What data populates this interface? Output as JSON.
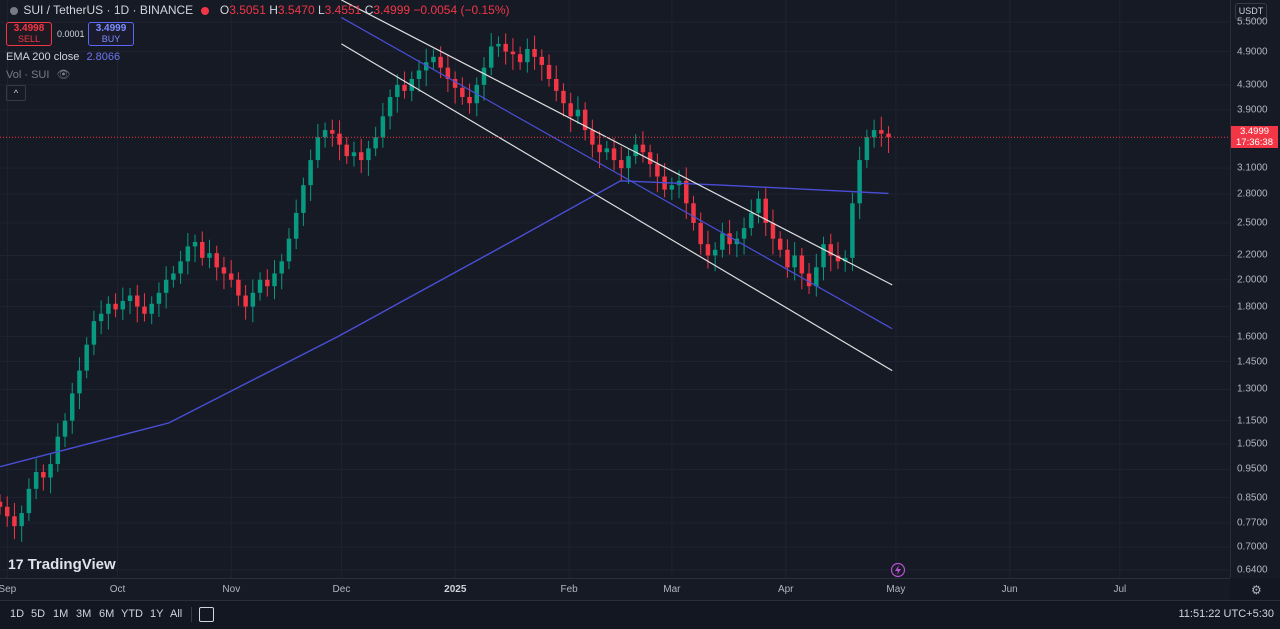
{
  "header": {
    "symbol_title": "SUI / TetherUS · 1D · BINANCE",
    "ohlc": {
      "o_label": "O",
      "o": "3.5051",
      "h_label": "H",
      "h": "3.5470",
      "l_label": "L",
      "l": "3.4551",
      "c_label": "C",
      "c": "3.4999",
      "change": "−0.0054 (−0.15%)"
    }
  },
  "trade": {
    "sell_price": "3.4998",
    "sell_label": "SELL",
    "spread": "0.0001",
    "buy_price": "3.4999",
    "buy_label": "BUY"
  },
  "indicators": {
    "ema_label": "EMA 200 close",
    "ema_value": "2.8066",
    "vol_label": "Vol · SUI"
  },
  "price_axis": {
    "currency": "USDT",
    "ticks": [
      "5.5000",
      "4.9000",
      "4.3000",
      "3.9000",
      "3.1000",
      "2.8000",
      "2.5000",
      "2.2000",
      "2.0000",
      "1.8000",
      "1.6000",
      "1.4500",
      "1.3000",
      "1.1500",
      "1.0500",
      "0.9500",
      "0.8500",
      "0.7700",
      "0.7000",
      "0.6400"
    ],
    "last_price": "3.4999",
    "countdown": "17:36:38"
  },
  "time_axis": {
    "ticks": [
      "Sep",
      "Oct",
      "Nov",
      "Dec",
      "2025",
      "Feb",
      "Mar",
      "Apr",
      "May",
      "Jun",
      "Jul"
    ]
  },
  "bottom_bar": {
    "ranges": [
      "1D",
      "5D",
      "1M",
      "3M",
      "6M",
      "YTD",
      "1Y",
      "All"
    ],
    "clock": "11:51:22 UTC+5:30"
  },
  "branding": {
    "logo_text": "TradingView"
  },
  "colors": {
    "up": "#089981",
    "down": "#f23645",
    "ema": "#4a4ed6",
    "channel": "#e0e0e0",
    "background": "#161a25"
  },
  "chart_data": {
    "type": "candlestick",
    "title": "",
    "scale": "log",
    "ylim": [
      0.62,
      6.0
    ],
    "x_range": [
      "2024-08-30",
      "2025-07-31"
    ],
    "series": [
      {
        "name": "SUI/USDT",
        "kind": "candles",
        "dates": [
          "2024-08-30",
          "2025-04-29"
        ],
        "closes": [
          0.82,
          0.79,
          0.76,
          0.8,
          0.88,
          0.94,
          0.92,
          0.97,
          1.08,
          1.15,
          1.28,
          1.4,
          1.55,
          1.7,
          1.75,
          1.82,
          1.78,
          1.84,
          1.88,
          1.8,
          1.75,
          1.82,
          1.9,
          2.0,
          2.05,
          2.15,
          2.28,
          2.32,
          2.18,
          2.22,
          2.1,
          2.05,
          2.0,
          1.88,
          1.8,
          1.9,
          2.0,
          1.95,
          2.05,
          2.15,
          2.35,
          2.6,
          2.9,
          3.2,
          3.5,
          3.6,
          3.55,
          3.4,
          3.25,
          3.3,
          3.2,
          3.35,
          3.5,
          3.8,
          4.1,
          4.3,
          4.2,
          4.4,
          4.55,
          4.7,
          4.8,
          4.6,
          4.4,
          4.25,
          4.1,
          4.0,
          4.3,
          4.6,
          5.0,
          5.05,
          4.9,
          4.85,
          4.7,
          4.95,
          4.8,
          4.65,
          4.4,
          4.2,
          4.0,
          3.8,
          3.9,
          3.6,
          3.4,
          3.3,
          3.35,
          3.2,
          3.1,
          3.25,
          3.4,
          3.3,
          3.15,
          3.0,
          2.85,
          2.9,
          2.95,
          2.7,
          2.5,
          2.3,
          2.2,
          2.25,
          2.4,
          2.3,
          2.35,
          2.45,
          2.6,
          2.75,
          2.5,
          2.35,
          2.25,
          2.1,
          2.2,
          2.05,
          1.95,
          2.1,
          2.3,
          2.2,
          2.15,
          2.18,
          2.7,
          3.2,
          3.5,
          3.6,
          3.55,
          3.5
        ],
        "ohlc_last": {
          "o": 3.5051,
          "h": 3.547,
          "l": 3.4551,
          "c": 3.4999
        }
      },
      {
        "name": "EMA 200 close",
        "kind": "line",
        "x": [
          "2024-08-30",
          "2024-10-15",
          "2024-11-30",
          "2025-01-15",
          "2025-02-15",
          "2025-03-15",
          "2025-04-29"
        ],
        "values": [
          0.96,
          1.14,
          1.6,
          2.3,
          2.95,
          2.9,
          2.8066
        ]
      }
    ],
    "annotations": [
      {
        "type": "trendline",
        "label": "",
        "points": [
          [
            "2024-12-01",
            6.0
          ],
          [
            "2025-04-30",
            1.96
          ]
        ]
      },
      {
        "type": "trendline",
        "label": "",
        "points": [
          [
            "2024-12-01",
            5.6
          ],
          [
            "2025-04-30",
            1.65
          ]
        ]
      },
      {
        "type": "trendline",
        "label": "",
        "points": [
          [
            "2024-12-01",
            5.05
          ],
          [
            "2025-04-30",
            1.4
          ]
        ]
      }
    ],
    "last_price": 3.4999
  }
}
